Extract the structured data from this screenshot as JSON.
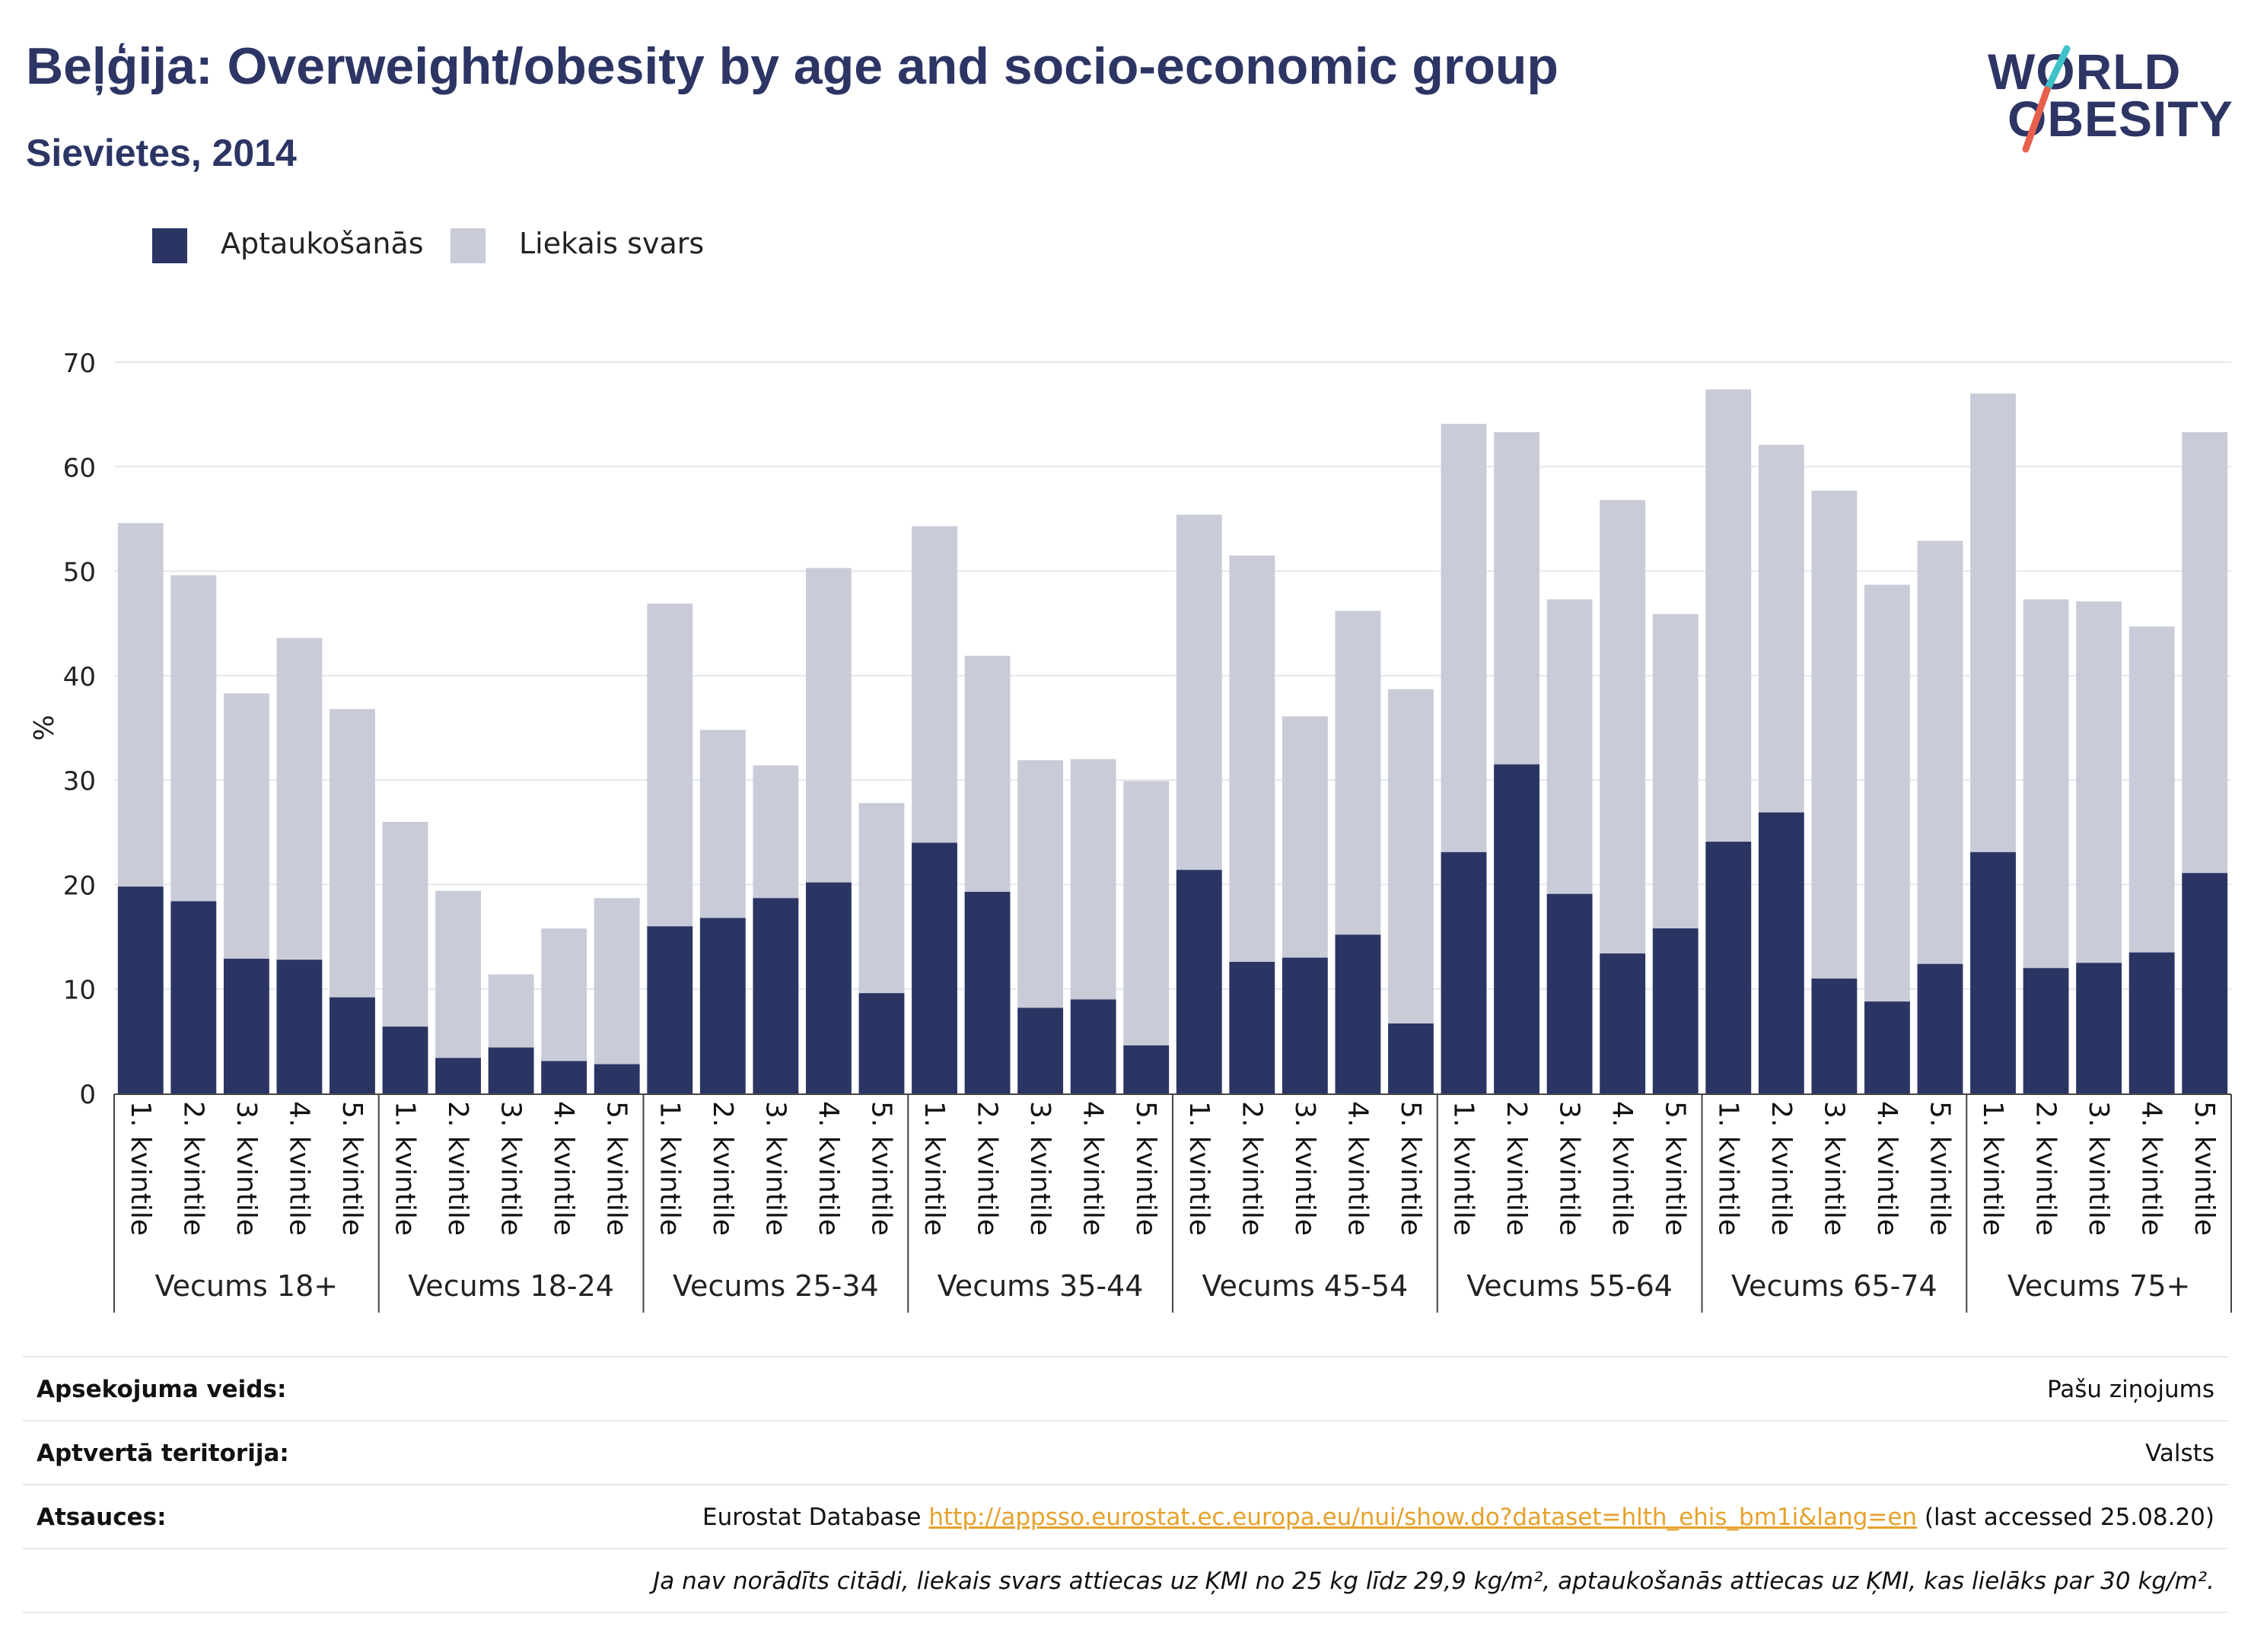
{
  "header": {
    "title": "Beļģija: Overweight/obesity by age and socio-economic group",
    "subtitle": "Sievietes, 2014"
  },
  "logo": {
    "line1": "WORLD",
    "line2": "OBESITY"
  },
  "colors": {
    "obesity": "#2b3564",
    "overweight": "#c9cbd8",
    "logo_teal": "#3fc1c9",
    "logo_red": "#e8604c",
    "link": "#e5a22d"
  },
  "legend": [
    {
      "label": "Aptaukošanās",
      "color": "#2b3564"
    },
    {
      "label": "Liekais svars",
      "color": "#c9cbd8"
    }
  ],
  "chart_data": {
    "type": "bar",
    "stacked": false,
    "overlay": true,
    "ylabel": "%",
    "ylim": [
      0,
      70
    ],
    "yticks": [
      0,
      10,
      20,
      30,
      40,
      50,
      60,
      70
    ],
    "grid": true,
    "legend_position": "top-left",
    "groups": [
      "Vecums 18+",
      "Vecums 18-24",
      "Vecums 25-34",
      "Vecums 35-44",
      "Vecums 45-54",
      "Vecums 55-64",
      "Vecums 65-74",
      "Vecums 75+"
    ],
    "categories": [
      "1. kvintile",
      "2. kvintile",
      "3. kvintile",
      "4. kvintile",
      "5. kvintile"
    ],
    "series": [
      {
        "name": "Liekais svars",
        "values": [
          [
            54.6,
            49.6,
            38.3,
            43.6,
            36.8
          ],
          [
            26.0,
            19.4,
            11.4,
            15.8,
            18.7
          ],
          [
            46.9,
            34.8,
            31.4,
            50.3,
            27.8
          ],
          [
            54.3,
            41.9,
            31.9,
            32.0,
            29.9
          ],
          [
            55.4,
            51.5,
            36.1,
            46.2,
            38.7
          ],
          [
            64.1,
            63.3,
            47.3,
            56.8,
            45.9
          ],
          [
            67.4,
            62.1,
            57.7,
            48.7,
            52.9
          ],
          [
            67.0,
            47.3,
            47.1,
            44.7,
            63.3
          ]
        ]
      },
      {
        "name": "Aptaukošanās",
        "values": [
          [
            19.8,
            18.4,
            12.9,
            12.8,
            9.2
          ],
          [
            6.4,
            3.4,
            4.4,
            3.1,
            2.8
          ],
          [
            16.0,
            16.8,
            18.7,
            20.2,
            9.6
          ],
          [
            24.0,
            19.3,
            8.2,
            9.0,
            4.6
          ],
          [
            21.4,
            12.6,
            13.0,
            15.2,
            6.7
          ],
          [
            23.1,
            31.5,
            19.1,
            13.4,
            15.8
          ],
          [
            24.1,
            26.9,
            11.0,
            8.8,
            12.4
          ],
          [
            23.1,
            12.0,
            12.5,
            13.5,
            21.1
          ]
        ]
      }
    ]
  },
  "meta": {
    "rows": [
      {
        "key": "Apsekojuma veids:",
        "value": "Pašu ziņojums"
      },
      {
        "key": "Aptvertā teritorija:",
        "value": "Valsts"
      }
    ],
    "sources_key": "Atsauces:",
    "sources_prefix": "Eurostat Database",
    "sources_link": "http://appsso.eurostat.ec.europa.eu/nui/show.do?dataset=hlth_ehis_bm1i&lang=en",
    "sources_suffix": "(last accessed 25.08.20)",
    "note": "Ja nav norādīts citādi, liekais svars attiecas uz ĶMI no 25 kg līdz 29,9 kg/m², aptaukošanās attiecas uz ĶMI, kas lielāks par 30 kg/m²."
  }
}
